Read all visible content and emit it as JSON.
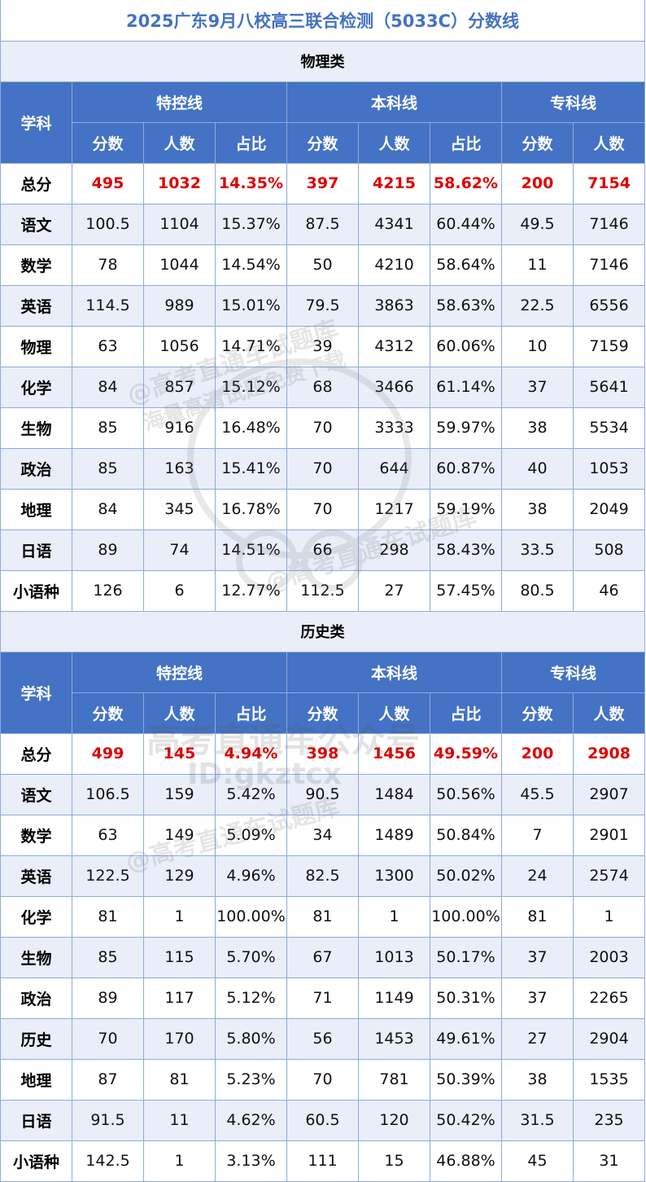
{
  "title": "2025广东9月八校高三联合检测（5033C）分数线",
  "colors": {
    "header_bg": "#4472c4",
    "title_text": "#4472c4",
    "alt_row_bg": "#e9eef8",
    "highlight_red": "#e00000",
    "grid_line": "#8eaadb"
  },
  "header": {
    "subject": "学科",
    "groups": [
      "特控线",
      "本科线",
      "专科线"
    ],
    "subcols": [
      "分数",
      "人数",
      "占比",
      "分数",
      "人数",
      "占比",
      "分数",
      "人数"
    ]
  },
  "sections": [
    {
      "name": "物理类",
      "rows": [
        {
          "subject": "总分",
          "cells": [
            "495",
            "1032",
            "14.35%",
            "397",
            "4215",
            "58.62%",
            "200",
            "7154"
          ]
        },
        {
          "subject": "语文",
          "cells": [
            "100.5",
            "1104",
            "15.37%",
            "87.5",
            "4341",
            "60.44%",
            "49.5",
            "7146"
          ]
        },
        {
          "subject": "数学",
          "cells": [
            "78",
            "1044",
            "14.54%",
            "50",
            "4210",
            "58.64%",
            "11",
            "7146"
          ]
        },
        {
          "subject": "英语",
          "cells": [
            "114.5",
            "989",
            "15.01%",
            "79.5",
            "3863",
            "58.63%",
            "22.5",
            "6556"
          ]
        },
        {
          "subject": "物理",
          "cells": [
            "63",
            "1056",
            "14.71%",
            "39",
            "4312",
            "60.06%",
            "10",
            "7159"
          ]
        },
        {
          "subject": "化学",
          "cells": [
            "84",
            "857",
            "15.12%",
            "68",
            "3466",
            "61.14%",
            "37",
            "5641"
          ]
        },
        {
          "subject": "生物",
          "cells": [
            "85",
            "916",
            "16.48%",
            "70",
            "3333",
            "59.97%",
            "38",
            "5534"
          ]
        },
        {
          "subject": "政治",
          "cells": [
            "85",
            "163",
            "15.41%",
            "70",
            "644",
            "60.87%",
            "40",
            "1053"
          ]
        },
        {
          "subject": "地理",
          "cells": [
            "84",
            "345",
            "16.78%",
            "70",
            "1217",
            "59.19%",
            "38",
            "2049"
          ]
        },
        {
          "subject": "日语",
          "cells": [
            "89",
            "74",
            "14.51%",
            "66",
            "298",
            "58.43%",
            "33.5",
            "508"
          ]
        },
        {
          "subject": "小语种",
          "cells": [
            "126",
            "6",
            "12.77%",
            "112.5",
            "27",
            "57.45%",
            "80.5",
            "46"
          ]
        }
      ]
    },
    {
      "name": "历史类",
      "rows": [
        {
          "subject": "总分",
          "cells": [
            "499",
            "145",
            "4.94%",
            "398",
            "1456",
            "49.59%",
            "200",
            "2908"
          ]
        },
        {
          "subject": "语文",
          "cells": [
            "106.5",
            "159",
            "5.42%",
            "90.5",
            "1484",
            "50.56%",
            "45.5",
            "2907"
          ]
        },
        {
          "subject": "数学",
          "cells": [
            "63",
            "149",
            "5.09%",
            "34",
            "1489",
            "50.84%",
            "7",
            "2901"
          ]
        },
        {
          "subject": "英语",
          "cells": [
            "122.5",
            "129",
            "4.96%",
            "82.5",
            "1300",
            "50.02%",
            "24",
            "2574"
          ]
        },
        {
          "subject": "化学",
          "cells": [
            "81",
            "1",
            "100.00%",
            "81",
            "1",
            "100.00%",
            "81",
            "1"
          ]
        },
        {
          "subject": "生物",
          "cells": [
            "85",
            "115",
            "5.70%",
            "67",
            "1013",
            "50.17%",
            "37",
            "2003"
          ]
        },
        {
          "subject": "政治",
          "cells": [
            "89",
            "117",
            "5.12%",
            "71",
            "1149",
            "50.31%",
            "37",
            "2265"
          ]
        },
        {
          "subject": "历史",
          "cells": [
            "70",
            "170",
            "5.80%",
            "56",
            "1453",
            "49.61%",
            "27",
            "2904"
          ]
        },
        {
          "subject": "地理",
          "cells": [
            "87",
            "81",
            "5.23%",
            "70",
            "781",
            "50.39%",
            "38",
            "1535"
          ]
        },
        {
          "subject": "日语",
          "cells": [
            "91.5",
            "11",
            "4.62%",
            "60.5",
            "120",
            "50.42%",
            "31.5",
            "235"
          ]
        },
        {
          "subject": "小语种",
          "cells": [
            "142.5",
            "1",
            "3.13%",
            "111",
            "15",
            "46.88%",
            "45",
            "31"
          ]
        }
      ]
    }
  ],
  "watermark": {
    "line1": "@高考直通车试题库",
    "line2": "海量高清试题免费下载",
    "line3": "高考直通车公众号",
    "line4": "ID:gkztcx"
  }
}
